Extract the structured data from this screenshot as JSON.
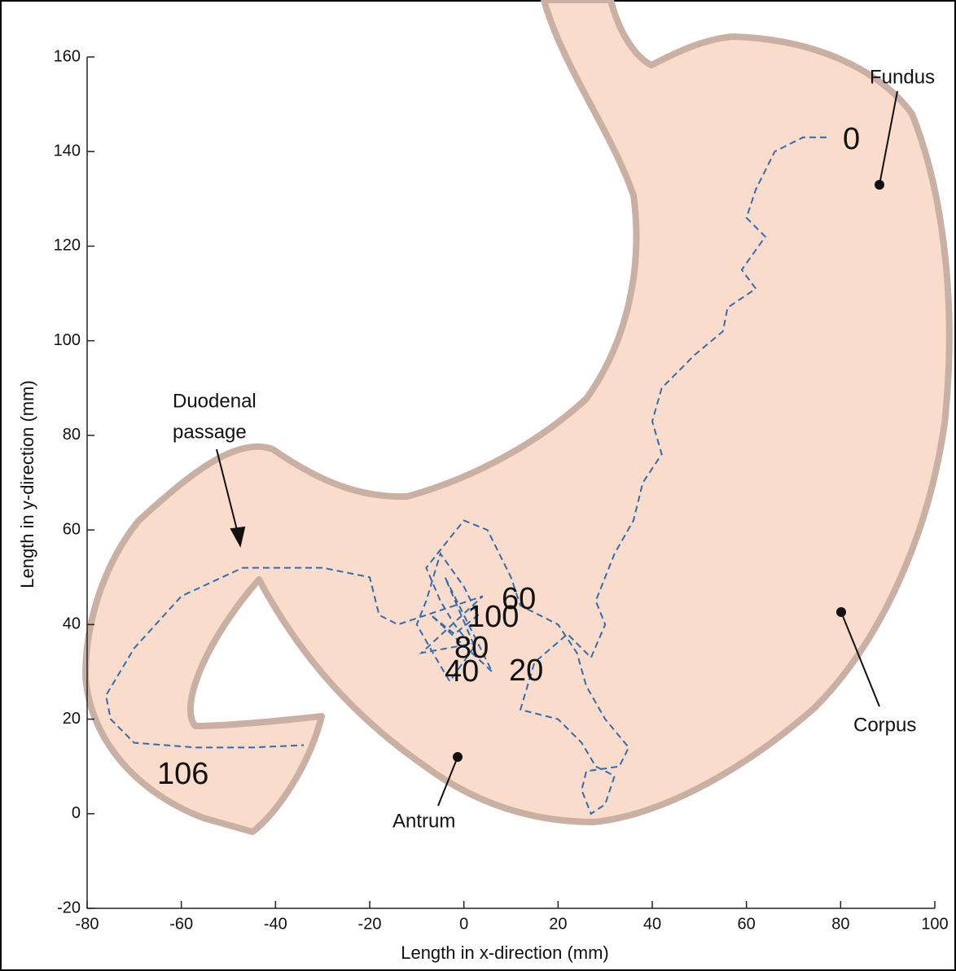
{
  "chart_data": {
    "type": "line",
    "xlabel": "Length in x-direction (mm)",
    "ylabel": "Length in y-direction (mm)",
    "xlim": [
      -80,
      100
    ],
    "xticks": [
      -80,
      -60,
      -40,
      -20,
      0,
      20,
      40,
      60,
      80,
      100
    ],
    "ylim": [
      -20,
      160
    ],
    "yticks": [
      -20,
      0,
      20,
      40,
      60,
      80,
      100,
      120,
      140,
      160
    ],
    "color": "#2e6db4",
    "x": [
      77,
      72,
      66,
      62,
      60,
      64,
      59,
      62,
      56,
      55,
      49,
      42,
      40,
      42,
      38,
      36,
      32,
      28,
      30,
      27,
      22,
      15,
      12,
      20,
      25,
      28,
      32,
      30,
      27,
      25,
      26,
      33,
      35,
      30,
      26,
      24,
      20,
      12,
      10,
      5,
      0,
      -4,
      -8,
      -5,
      -2,
      2,
      -3,
      -6,
      -10,
      -8,
      -5,
      0,
      3,
      -2,
      -7,
      6,
      -4,
      2,
      -9,
      4,
      -14,
      -18,
      -20,
      -30,
      -47,
      -60,
      -70,
      -76,
      -75,
      -70,
      -57,
      -45,
      -34
    ],
    "values": [
      143,
      143,
      140,
      132,
      126,
      122,
      115,
      111,
      107,
      102,
      97,
      90,
      83,
      76,
      70,
      62,
      55,
      45,
      40,
      33,
      38,
      32,
      22,
      20,
      15,
      10,
      8,
      2,
      0,
      5,
      9,
      10,
      14,
      20,
      27,
      34,
      40,
      44,
      50,
      60,
      62,
      57,
      52,
      45,
      40,
      35,
      28,
      33,
      40,
      45,
      55,
      48,
      42,
      38,
      42,
      30,
      50,
      36,
      34,
      46,
      40,
      42,
      50,
      52,
      52,
      46,
      35,
      25,
      20,
      15,
      14,
      14,
      14.5
    ],
    "time_labels": [
      "0",
      "20",
      "40",
      "60",
      "80",
      "100",
      "106"
    ],
    "region_labels": {
      "fundus": "Fundus",
      "corpus": "Corpus",
      "antrum": "Antrum",
      "duodenal": [
        "Duodenal",
        "passage"
      ]
    }
  }
}
